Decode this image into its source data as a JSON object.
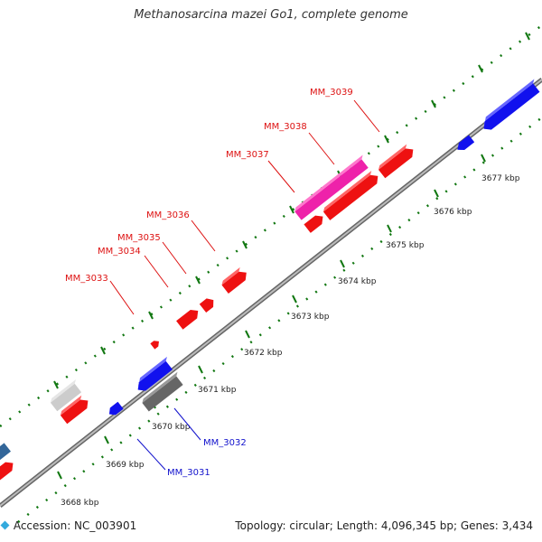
{
  "header": {
    "title": "Methanosarcina mazei Go1, complete genome"
  },
  "footer": {
    "accession_label": "Accession: NC_003901",
    "info_label": "Topology: circular; Length: 4,096,345 bp; Genes: 3,434"
  },
  "colors": {
    "forward_gene": "#ee1111",
    "reverse_gene": "#1111ee",
    "highlight_gene": "#ee22aa",
    "gray_gene": "#777777",
    "light_gray_gene": "#cccccc",
    "axis": "#888888",
    "tick": "#117711",
    "label_red": "#dd1111",
    "label_blue": "#1111cc"
  },
  "ticks": [
    {
      "label": "3668 kbp"
    },
    {
      "label": "3669 kbp"
    },
    {
      "label": "3670 kbp"
    },
    {
      "label": "3671 kbp"
    },
    {
      "label": "3672 kbp"
    },
    {
      "label": "3673 kbp"
    },
    {
      "label": "3674 kbp"
    },
    {
      "label": "3675 kbp"
    },
    {
      "label": "3676 kbp"
    },
    {
      "label": "3677 kbp"
    }
  ],
  "gene_labels": [
    {
      "name": "MM_3039",
      "color": "red"
    },
    {
      "name": "MM_3038",
      "color": "red"
    },
    {
      "name": "MM_3037",
      "color": "red"
    },
    {
      "name": "MM_3036",
      "color": "red"
    },
    {
      "name": "MM_3035",
      "color": "red"
    },
    {
      "name": "MM_3034",
      "color": "red"
    },
    {
      "name": "MM_3033",
      "color": "red"
    },
    {
      "name": "MM_3032",
      "color": "blue"
    },
    {
      "name": "MM_3031",
      "color": "blue"
    }
  ]
}
